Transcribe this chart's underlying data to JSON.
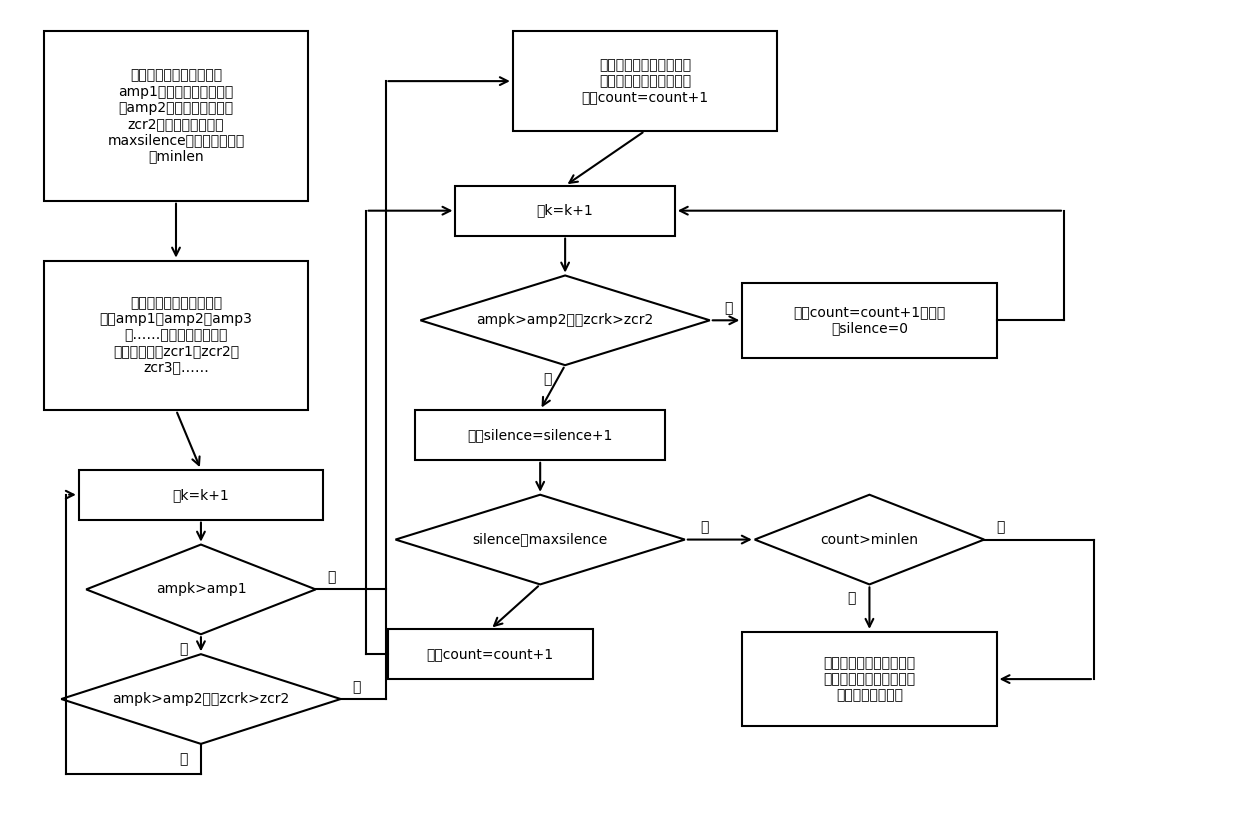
{
  "bg_color": "#ffffff",
  "line_color": "#000000",
  "text_color": "#000000",
  "b1_text": "设定短时能量阈值高门限\namp1、短时能量阈值低门\n限amp2、短时过零率阈值\nzcr2、最大无声段长度\nmaxsilence和最小语音段长\n度minlen",
  "b2_text": "记各帧弧声信号的短时能\n量为amp1，amp2，amp3\n，……，各帧弧声信号的\n短时过零率为zcr1，zcr2，\nzcr3，……",
  "b3_text": "取k=k+1",
  "d1_text": "ampk>amp1",
  "d2_text": "ampk>amp2并且zcrk>zcr2",
  "bt_text": "将该帧弧声信号记为弧声\n信号异常区间的起始帧，\n更新count=count+1",
  "bk2_text": "取k=k+1",
  "d3_text": "ampk>amp2并且zcrk>zcr2",
  "bu1_text": "更新count=count+1，初始\n化silence=0",
  "bs_text": "更新silence=silence+1",
  "d4_text": "silence＜maxsilence",
  "d5_text": "count>minlen",
  "bc2_text": "更新count=count+1",
  "be_text": "将该帧弧声信号记为异常\n信号区间的结束帧，提取\n弧声信号异常区间",
  "yes": "是",
  "no": "否",
  "font_size_box": 10,
  "font_size_label": 10
}
